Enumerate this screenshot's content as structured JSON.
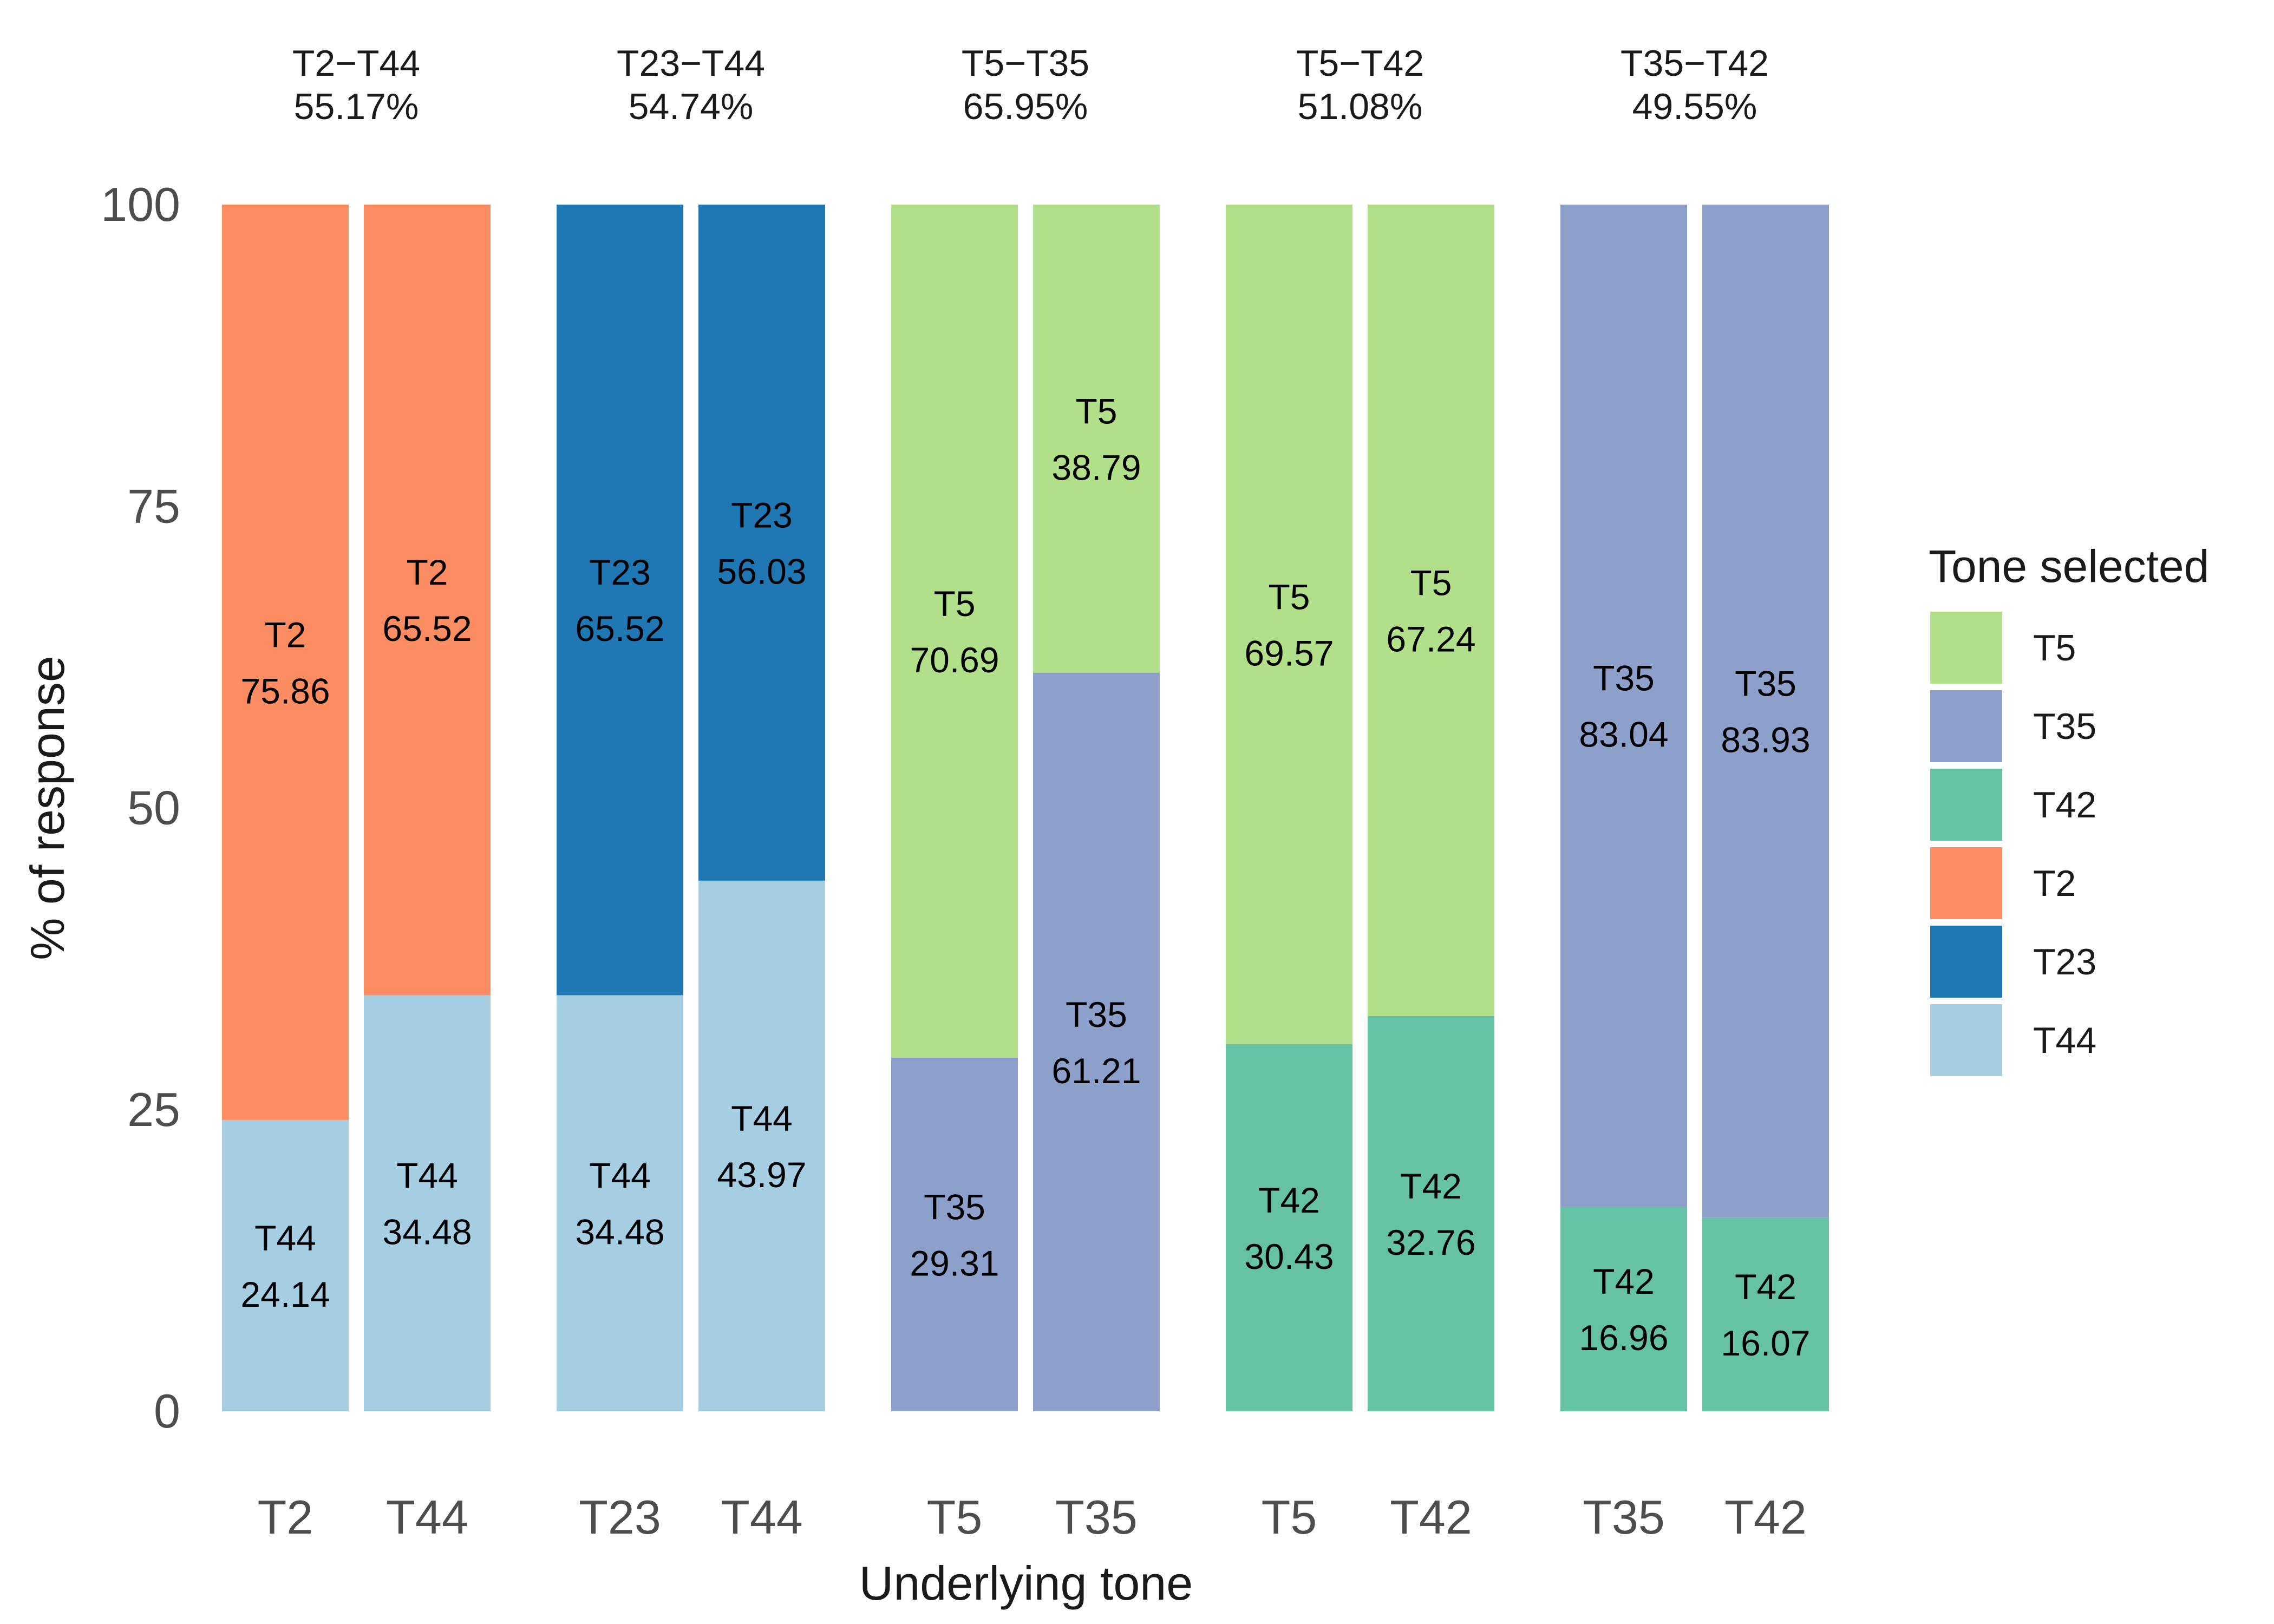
{
  "chart_data": {
    "type": "bar",
    "stacked": true,
    "xlabel": "Underlying tone",
    "ylabel": "% of response",
    "ylim": [
      0,
      100
    ],
    "yticks": [
      0,
      25,
      50,
      75,
      100
    ],
    "grid": false,
    "legend": {
      "title": "Tone selected",
      "placement": "right",
      "entries": [
        {
          "name": "T5",
          "color": "#b2df8a"
        },
        {
          "name": "T35",
          "color": "#8da0cb"
        },
        {
          "name": "T42",
          "color": "#66c2a5"
        },
        {
          "name": "T2",
          "color": "#fc8d62"
        },
        {
          "name": "T23",
          "color": "#1f78b4"
        },
        {
          "name": "T44",
          "color": "#a6cee3"
        }
      ]
    },
    "groups": [
      {
        "title": "T2−T44",
        "accuracy": "55.17%",
        "bars": [
          {
            "category": "T2",
            "segments": [
              {
                "tone": "T44",
                "value": 24.14,
                "label": "24.14"
              },
              {
                "tone": "T2",
                "value": 75.86,
                "label": "75.86"
              }
            ]
          },
          {
            "category": "T44",
            "segments": [
              {
                "tone": "T44",
                "value": 34.48,
                "label": "34.48"
              },
              {
                "tone": "T2",
                "value": 65.52,
                "label": "65.52"
              }
            ]
          }
        ]
      },
      {
        "title": "T23−T44",
        "accuracy": "54.74%",
        "bars": [
          {
            "category": "T23",
            "segments": [
              {
                "tone": "T44",
                "value": 34.48,
                "label": "34.48"
              },
              {
                "tone": "T23",
                "value": 65.52,
                "label": "65.52"
              }
            ]
          },
          {
            "category": "T44",
            "segments": [
              {
                "tone": "T44",
                "value": 43.97,
                "label": "43.97"
              },
              {
                "tone": "T23",
                "value": 56.03,
                "label": "56.03"
              }
            ]
          }
        ]
      },
      {
        "title": "T5−T35",
        "accuracy": "65.95%",
        "bars": [
          {
            "category": "T5",
            "segments": [
              {
                "tone": "T35",
                "value": 29.31,
                "label": "29.31"
              },
              {
                "tone": "T5",
                "value": 70.69,
                "label": "70.69"
              }
            ]
          },
          {
            "category": "T35",
            "segments": [
              {
                "tone": "T35",
                "value": 61.21,
                "label": "61.21"
              },
              {
                "tone": "T5",
                "value": 38.79,
                "label": "38.79"
              }
            ]
          }
        ]
      },
      {
        "title": "T5−T42",
        "accuracy": "51.08%",
        "bars": [
          {
            "category": "T5",
            "segments": [
              {
                "tone": "T42",
                "value": 30.43,
                "label": "30.43"
              },
              {
                "tone": "T5",
                "value": 69.57,
                "label": "69.57"
              }
            ]
          },
          {
            "category": "T42",
            "segments": [
              {
                "tone": "T42",
                "value": 32.76,
                "label": "32.76"
              },
              {
                "tone": "T5",
                "value": 67.24,
                "label": "67.24"
              }
            ]
          }
        ]
      },
      {
        "title": "T35−T42",
        "accuracy": "49.55%",
        "bars": [
          {
            "category": "T35",
            "segments": [
              {
                "tone": "T42",
                "value": 16.96,
                "label": "16.96"
              },
              {
                "tone": "T35",
                "value": 83.04,
                "label": "83.04"
              }
            ]
          },
          {
            "category": "T42",
            "segments": [
              {
                "tone": "T42",
                "value": 16.07,
                "label": "16.07"
              },
              {
                "tone": "T35",
                "value": 83.93,
                "label": "83.93"
              }
            ]
          }
        ]
      }
    ]
  }
}
